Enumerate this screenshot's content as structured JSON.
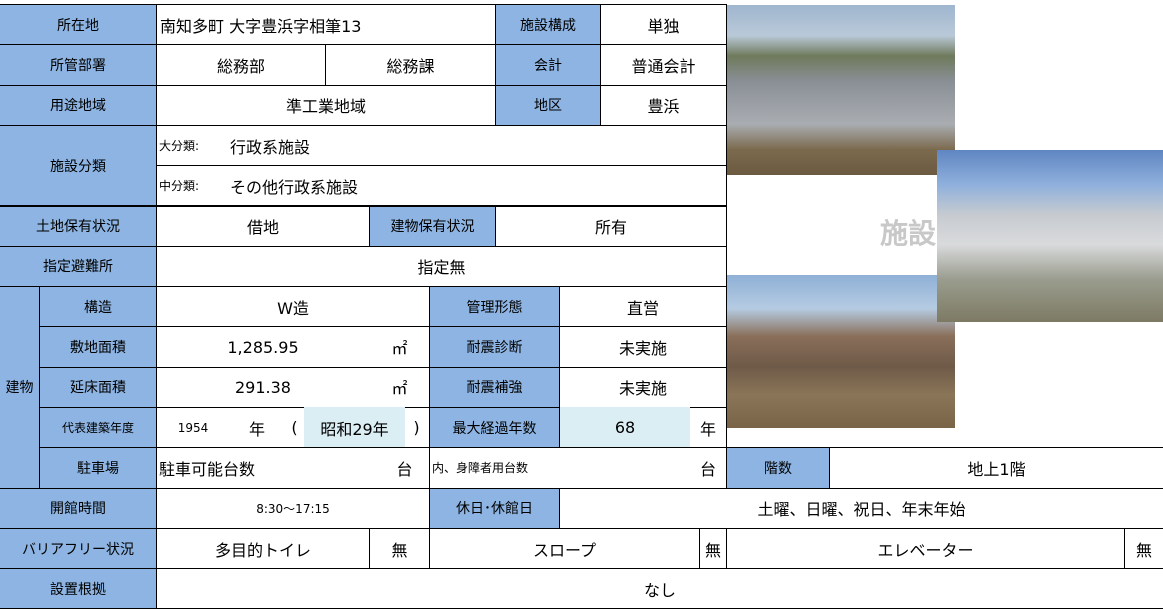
{
  "photo_caption": "施設",
  "table": {
    "r1": [
      "所在地",
      "南知多町 大字豊浜字相筆13",
      "施設構成",
      "単独"
    ],
    "r2": [
      "所管部署",
      "総務部",
      "総務課",
      "会計",
      "普通会計"
    ],
    "r3": [
      "用途地域",
      "準工業地域",
      "地区",
      "豊浜"
    ],
    "r4": [
      "施設分類",
      "大分類:",
      "行政系施設",
      "中分類:",
      "その他行政系施設"
    ],
    "r5": [
      "土地保有状況",
      "借地",
      "建物保有状況",
      "所有"
    ],
    "r6": [
      "指定避難所",
      "指定無"
    ],
    "building_label": "建物",
    "r7": [
      "構造",
      "W造",
      "管理形態",
      "直営"
    ],
    "r8": [
      "敷地面積",
      "1,285.95",
      "㎡",
      "耐震診断",
      "未実施"
    ],
    "r9": [
      "延床面積",
      "291.38",
      "㎡",
      "耐震補強",
      "未実施"
    ],
    "r10": [
      "代表建築年度",
      "1954",
      "年",
      "(",
      "昭和29年",
      ")",
      "最大経過年数",
      "68",
      "年"
    ],
    "r11": [
      "駐車場",
      "駐車可能台数",
      "台",
      "内、身障者用台数",
      "台",
      "階数",
      "地上1階"
    ],
    "r12": [
      "開館時間",
      "8:30〜17:15",
      "休日･休館日",
      "土曜、日曜、祝日、年末年始"
    ],
    "r13": [
      "バリアフリー状況",
      "多目的トイレ",
      "無",
      "スロープ",
      "無",
      "エレベーター",
      "無"
    ],
    "r14": [
      "設置根拠",
      "なし"
    ]
  }
}
